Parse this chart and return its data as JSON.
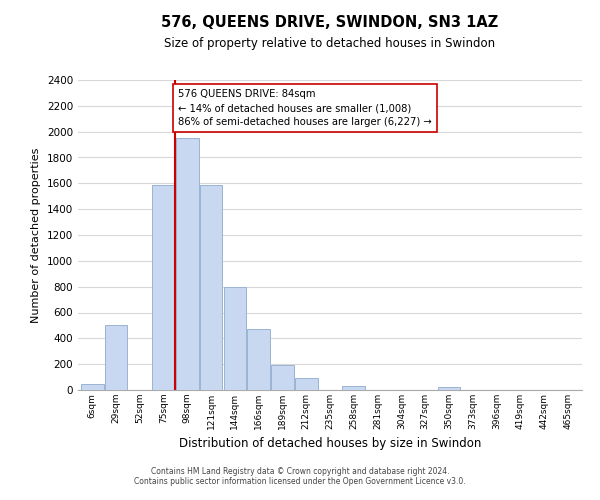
{
  "title": "576, QUEENS DRIVE, SWINDON, SN3 1AZ",
  "subtitle": "Size of property relative to detached houses in Swindon",
  "xlabel": "Distribution of detached houses by size in Swindon",
  "ylabel": "Number of detached properties",
  "bar_labels": [
    "6sqm",
    "29sqm",
    "52sqm",
    "75sqm",
    "98sqm",
    "121sqm",
    "144sqm",
    "166sqm",
    "189sqm",
    "212sqm",
    "235sqm",
    "258sqm",
    "281sqm",
    "304sqm",
    "327sqm",
    "350sqm",
    "373sqm",
    "396sqm",
    "419sqm",
    "442sqm",
    "465sqm"
  ],
  "bar_heights": [
    50,
    500,
    0,
    1590,
    1950,
    1590,
    800,
    470,
    190,
    90,
    0,
    30,
    0,
    0,
    0,
    20,
    0,
    0,
    0,
    0,
    0
  ],
  "bar_color": "#c8d8f0",
  "bar_edge_color": "#9ab4d4",
  "vline_color": "#cc0000",
  "vline_x": 3.5,
  "annotation_text": "576 QUEENS DRIVE: 84sqm\n← 14% of detached houses are smaller (1,008)\n86% of semi-detached houses are larger (6,227) →",
  "annotation_box_edgecolor": "#cc0000",
  "annotation_box_facecolor": "#ffffff",
  "ylim": [
    0,
    2400
  ],
  "yticks": [
    0,
    200,
    400,
    600,
    800,
    1000,
    1200,
    1400,
    1600,
    1800,
    2000,
    2200,
    2400
  ],
  "footer_line1": "Contains HM Land Registry data © Crown copyright and database right 2024.",
  "footer_line2": "Contains public sector information licensed under the Open Government Licence v3.0.",
  "bg_color": "#ffffff",
  "grid_color": "#d8d8d8"
}
